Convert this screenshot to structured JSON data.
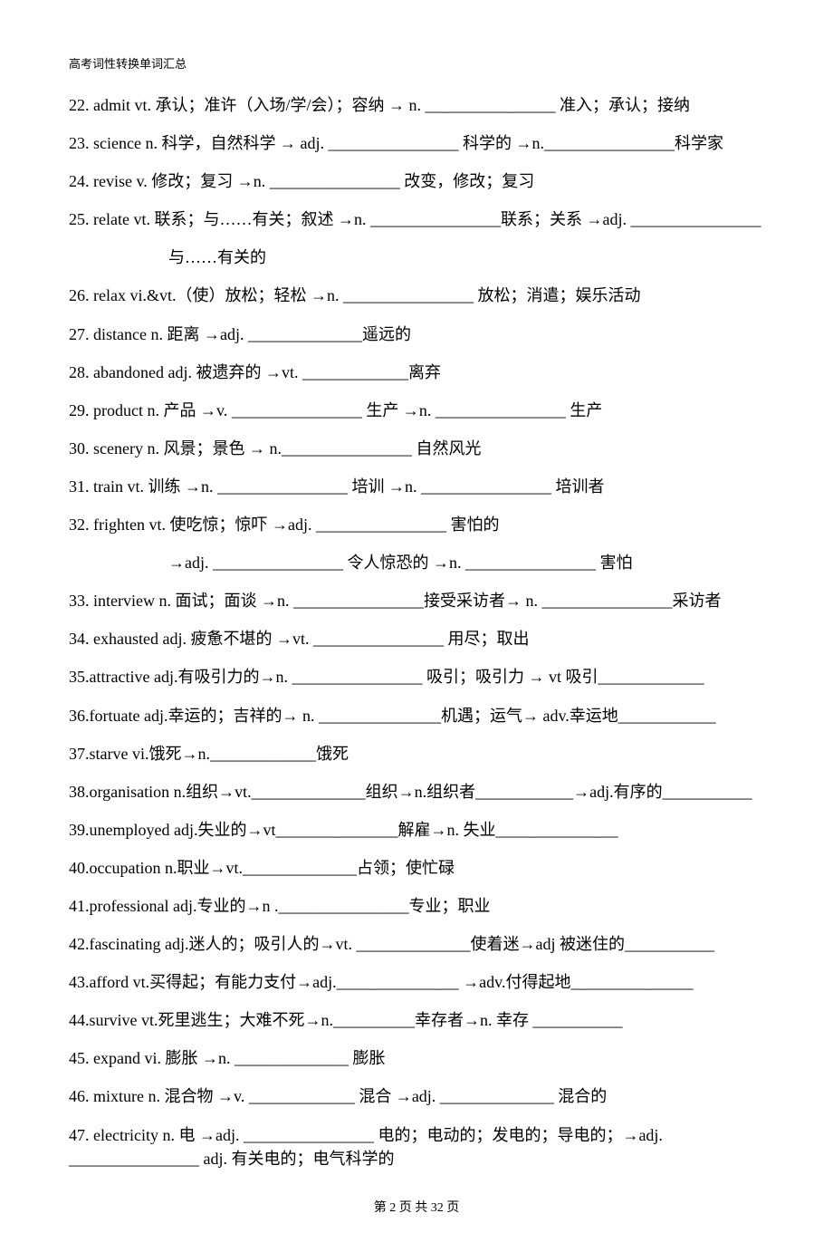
{
  "header": "高考词性转换单词汇总",
  "items": [
    {
      "text": "22. admit vt.  承认；准许（入场/学/会）；容纳  → n. ________________  准入；承认；接纳"
    },
    {
      "text": "23. science n.  科学，自然科学  → adj. ________________  科学的    →n.________________科学家"
    },
    {
      "text": "24. revise v.  修改；复习  →n. ________________  改变，修改；复习"
    },
    {
      "text": "25. relate vt.  联系；与……有关；叙述  →n. ________________联系；关系  →adj. ________________"
    },
    {
      "text": "与……有关的",
      "indent": true
    },
    {
      "text": "26. relax vi.&vt.（使）放松；轻松  →n. ________________  放松；消遣；娱乐活动"
    },
    {
      "text": "27. distance n.  距离  →adj. ______________遥远的"
    },
    {
      "text": "28. abandoned adj.  被遗弃的  →vt. _____________离弃"
    },
    {
      "text": "29. product n.  产品  →v. ________________  生产  →n. ________________  生产"
    },
    {
      "text": "30. scenery n.  风景；景色  → n.________________  自然风光"
    },
    {
      "text": "31. train vt.  训练  →n. ________________  培训  →n. ________________  培训者"
    },
    {
      "text": "32. frighten vt.  使吃惊；惊吓  →adj. ________________  害怕的"
    },
    {
      "text": "→adj. ________________  令人惊恐的  →n. ________________  害怕",
      "indent": true
    },
    {
      "text": "33. interview n.  面试；面谈  →n. ________________接受采访者→ n. ________________采访者"
    },
    {
      "text": "34. exhausted adj.  疲惫不堪的  →vt. ________________  用尽；取出"
    },
    {
      "text": "35.attractive adj.有吸引力的→n. ________________  吸引；吸引力  → vt 吸引_____________"
    },
    {
      "text": "36.fortuate adj.幸运的；吉祥的→ n. _______________机遇；运气→    adv.幸运地____________"
    },
    {
      "text": "37.starve vi.饿死→n._____________饿死"
    },
    {
      "text": "38.organisation n.组织→vt.______________组织→n.组织者____________→adj.有序的___________"
    },
    {
      "text": "39.unemployed adj.失业的→vt_______________解雇→n. 失业_______________"
    },
    {
      "text": "40.occupation n.职业→vt.______________占领；使忙碌"
    },
    {
      "text": "41.professional adj.专业的→n .________________专业；职业"
    },
    {
      "text": "42.fascinating adj.迷人的；吸引人的→vt. ______________使着迷→adj 被迷住的___________"
    },
    {
      "text": "43.afford vt.买得起；有能力支付→adj._______________ →adv.付得起地_______________"
    },
    {
      "text": "44.survive vt.死里逃生；大难不死→n.__________幸存者→n. 幸存  ___________"
    },
    {
      "text": "45. expand vi.  膨胀  →n. ______________  膨胀"
    },
    {
      "text": "46. mixture n.  混合物  →v. _____________  混合  →adj. ______________  混合的"
    },
    {
      "text": "47. electricity n.  电  →adj. ________________  电的；电动的；发电的；导电的；→adj. ________________ adj.  有关电的；电气科学的"
    }
  ],
  "footer": "第 2 页 共 32 页"
}
